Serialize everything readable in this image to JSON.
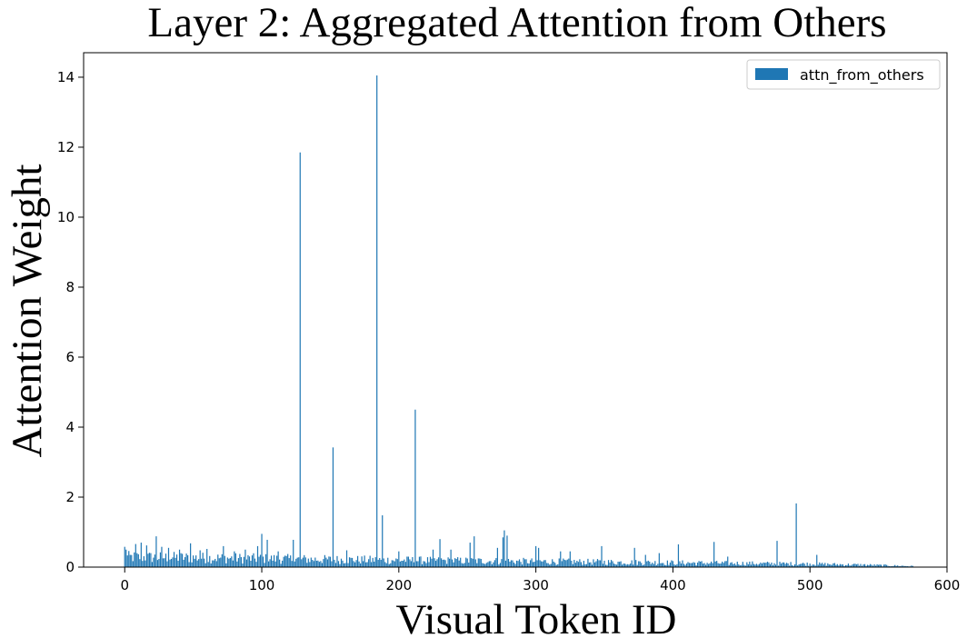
{
  "chart_data": {
    "type": "bar",
    "title": "Layer 2: Aggregated Attention from Others",
    "xlabel": "Visual Token ID",
    "ylabel": "Attention Weight",
    "xlim": [
      -30,
      600
    ],
    "ylim": [
      0,
      14.7
    ],
    "x_ticks": [
      0,
      100,
      200,
      300,
      400,
      500,
      600
    ],
    "y_ticks": [
      0,
      2,
      4,
      6,
      8,
      10,
      12,
      14
    ],
    "token_count": 576,
    "grid": false,
    "legend": {
      "position": "top-right"
    },
    "series": [
      {
        "name": "attn_from_others",
        "color": "#1f77b4",
        "baseline_profile": [
          [
            0,
            0.32
          ],
          [
            50,
            0.3
          ],
          [
            100,
            0.27
          ],
          [
            150,
            0.24
          ],
          [
            200,
            0.22
          ],
          [
            250,
            0.2
          ],
          [
            300,
            0.18
          ],
          [
            350,
            0.16
          ],
          [
            400,
            0.14
          ],
          [
            450,
            0.12
          ],
          [
            500,
            0.1
          ],
          [
            540,
            0.07
          ],
          [
            575,
            0.03
          ]
        ],
        "peaks": [
          {
            "x": 0,
            "value": 0.58
          },
          {
            "x": 1,
            "value": 0.5
          },
          {
            "x": 8,
            "value": 0.66
          },
          {
            "x": 12,
            "value": 0.7
          },
          {
            "x": 16,
            "value": 0.62
          },
          {
            "x": 23,
            "value": 0.88
          },
          {
            "x": 27,
            "value": 0.58
          },
          {
            "x": 32,
            "value": 0.55
          },
          {
            "x": 40,
            "value": 0.5
          },
          {
            "x": 48,
            "value": 0.68
          },
          {
            "x": 55,
            "value": 0.48
          },
          {
            "x": 60,
            "value": 0.52
          },
          {
            "x": 72,
            "value": 0.6
          },
          {
            "x": 80,
            "value": 0.45
          },
          {
            "x": 88,
            "value": 0.5
          },
          {
            "x": 97,
            "value": 0.6
          },
          {
            "x": 100,
            "value": 0.95
          },
          {
            "x": 104,
            "value": 0.78
          },
          {
            "x": 112,
            "value": 0.45
          },
          {
            "x": 123,
            "value": 0.78
          },
          {
            "x": 128,
            "value": 11.85
          },
          {
            "x": 152,
            "value": 3.42
          },
          {
            "x": 162,
            "value": 0.48
          },
          {
            "x": 184,
            "value": 14.05
          },
          {
            "x": 188,
            "value": 1.48
          },
          {
            "x": 200,
            "value": 0.45
          },
          {
            "x": 212,
            "value": 4.5
          },
          {
            "x": 225,
            "value": 0.5
          },
          {
            "x": 230,
            "value": 0.8
          },
          {
            "x": 238,
            "value": 0.5
          },
          {
            "x": 252,
            "value": 0.7
          },
          {
            "x": 255,
            "value": 0.88
          },
          {
            "x": 272,
            "value": 0.55
          },
          {
            "x": 276,
            "value": 0.85
          },
          {
            "x": 277,
            "value": 1.05
          },
          {
            "x": 279,
            "value": 0.9
          },
          {
            "x": 300,
            "value": 0.6
          },
          {
            "x": 302,
            "value": 0.55
          },
          {
            "x": 318,
            "value": 0.45
          },
          {
            "x": 325,
            "value": 0.45
          },
          {
            "x": 348,
            "value": 0.6
          },
          {
            "x": 372,
            "value": 0.55
          },
          {
            "x": 380,
            "value": 0.35
          },
          {
            "x": 390,
            "value": 0.4
          },
          {
            "x": 404,
            "value": 0.65
          },
          {
            "x": 430,
            "value": 0.72
          },
          {
            "x": 440,
            "value": 0.3
          },
          {
            "x": 476,
            "value": 0.75
          },
          {
            "x": 490,
            "value": 1.82
          },
          {
            "x": 505,
            "value": 0.35
          }
        ]
      }
    ]
  }
}
